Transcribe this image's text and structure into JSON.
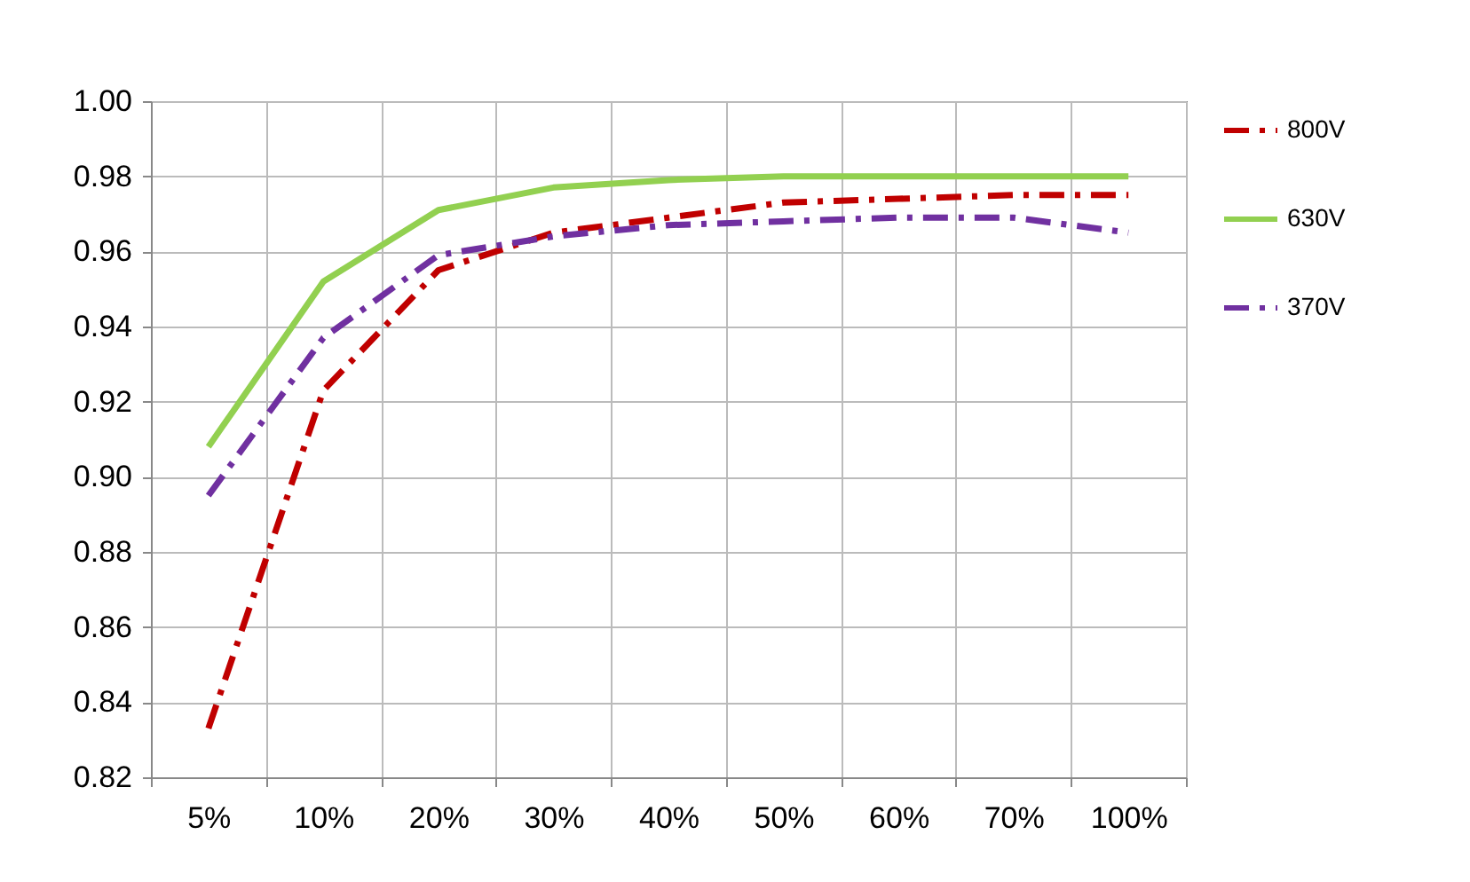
{
  "chart_data": {
    "type": "line",
    "categories": [
      "5%",
      "10%",
      "20%",
      "30%",
      "40%",
      "50%",
      "60%",
      "70%",
      "100%"
    ],
    "series": [
      {
        "name": "800V",
        "color": "#c00000",
        "line_style": "dashed",
        "values": [
          0.833,
          0.923,
          0.955,
          0.965,
          0.969,
          0.973,
          0.974,
          0.975,
          0.975
        ]
      },
      {
        "name": "630V",
        "color": "#92d050",
        "line_style": "solid",
        "values": [
          0.908,
          0.952,
          0.971,
          0.977,
          0.979,
          0.98,
          0.98,
          0.98,
          0.98
        ]
      },
      {
        "name": "370V",
        "color": "#7030a0",
        "line_style": "dashed",
        "values": [
          0.895,
          0.937,
          0.959,
          0.964,
          0.967,
          0.968,
          0.969,
          0.969,
          0.965
        ]
      }
    ],
    "ylim": [
      0.82,
      1.0
    ],
    "yticks": [
      0.82,
      0.84,
      0.86,
      0.88,
      {
        "value": 0.9,
        "label": "0.90"
      },
      0.92,
      0.94,
      0.96,
      0.98,
      {
        "value": 1,
        "label": "1.00"
      }
    ],
    "grid": true,
    "legend": "right"
  }
}
